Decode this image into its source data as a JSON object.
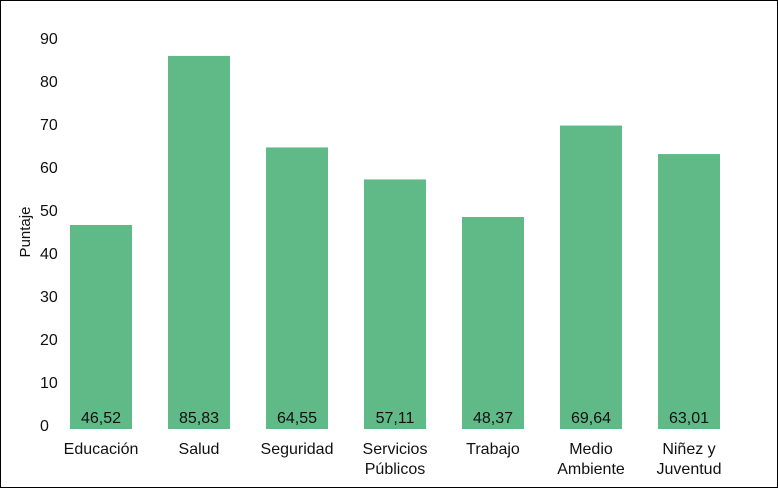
{
  "chart_data": {
    "type": "bar",
    "categories": [
      "Educación",
      "Salud",
      "Seguridad",
      "Servicios Públicos",
      "Trabajo",
      "Medio Ambiente",
      "Niñez y Juventud"
    ],
    "category_lines": [
      [
        "Educación"
      ],
      [
        "Salud"
      ],
      [
        "Seguridad"
      ],
      [
        "Servicios",
        "Públicos"
      ],
      [
        "Trabajo"
      ],
      [
        "Medio",
        "Ambiente"
      ],
      [
        "Niñez y",
        "Juventud"
      ]
    ],
    "values": [
      46.52,
      85.83,
      64.55,
      57.11,
      48.37,
      69.64,
      63.01
    ],
    "data_labels": [
      "46,52",
      "85,83",
      "64,55",
      "57,11",
      "48,37",
      "69,64",
      "63,01"
    ],
    "ylabel": "Puntaje",
    "xlabel": "",
    "title": "",
    "ylim": [
      0,
      90
    ],
    "yticks": [
      0,
      10,
      20,
      30,
      40,
      50,
      60,
      70,
      80,
      90
    ],
    "bar_color": "#5fba88",
    "grid": false,
    "legend": "none"
  }
}
